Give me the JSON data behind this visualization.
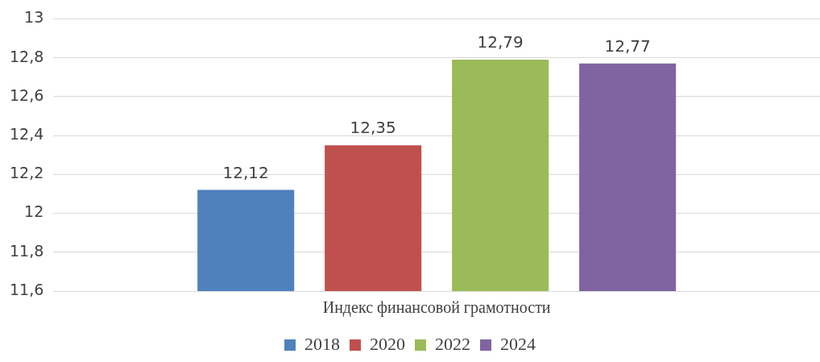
{
  "chart_data": {
    "type": "bar",
    "categories": [
      "Индекс финансовой грамотности"
    ],
    "series": [
      {
        "name": "2018",
        "color": "#4f81bd",
        "values": [
          12.12
        ],
        "value_labels": [
          "12,12"
        ]
      },
      {
        "name": "2020",
        "color": "#c0504d",
        "values": [
          12.35
        ],
        "value_labels": [
          "12,35"
        ]
      },
      {
        "name": "2022",
        "color": "#9bbb59",
        "values": [
          12.79
        ],
        "value_labels": [
          "12,79"
        ]
      },
      {
        "name": "2024",
        "color": "#8064a2",
        "values": [
          12.77
        ],
        "value_labels": [
          "12,77"
        ]
      }
    ],
    "ylim": [
      11.6,
      13
    ],
    "yticks": [
      {
        "value": 11.6,
        "label": "11,6"
      },
      {
        "value": 11.8,
        "label": "11,8"
      },
      12,
      {
        "value": 12.2,
        "label": "12,2"
      },
      {
        "value": 12.4,
        "label": "12,4"
      },
      {
        "value": 12.6,
        "label": "12,6"
      },
      {
        "value": 12.8,
        "label": "12,8"
      },
      13
    ],
    "grid": "y",
    "legend": "bottom"
  }
}
